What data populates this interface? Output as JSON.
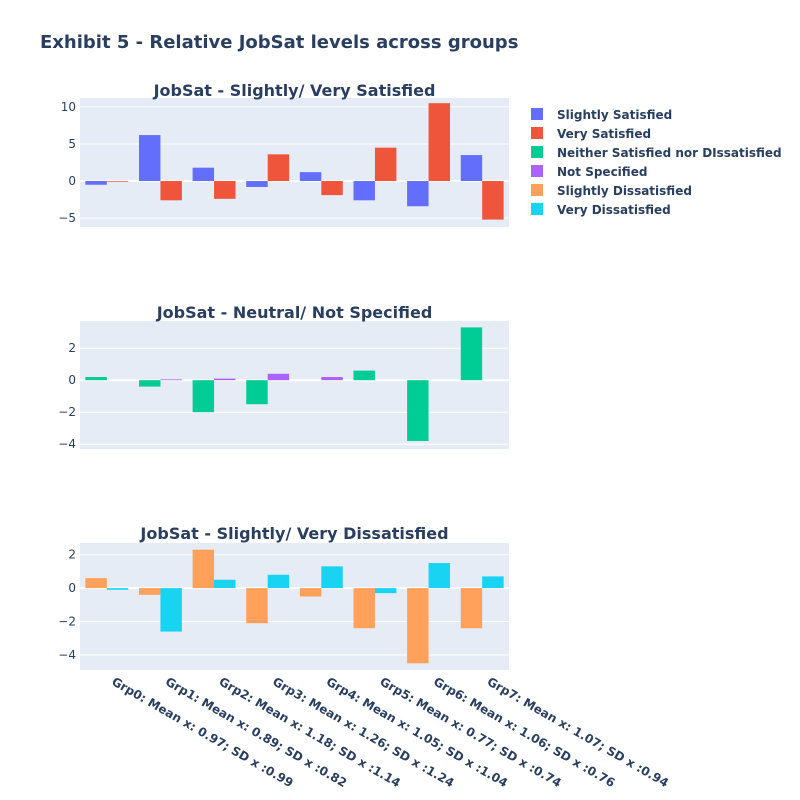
{
  "title": "Exhibit 5 - Relative JobSat levels across groups",
  "chart_data": [
    {
      "type": "bar",
      "title": "JobSat - Slightly/ Very Satisfied",
      "categories": [
        "Grp0: Mean x: 0.97; SD x :0.99",
        "Grp1: Mean x: 0.89; SD x :0.82",
        "Grp2: Mean x: 1.18; SD x :1.14",
        "Grp3: Mean x: 1.26; SD x :1.24",
        "Grp4: Mean x: 1.05; SD x :1.04",
        "Grp5: Mean x: 0.77; SD x :0.74",
        "Grp6: Mean x: 1.06; SD x :0.76",
        "Grp7: Mean x: 1.07; SD x :0.94"
      ],
      "ylim": [
        -6.2,
        11.2
      ],
      "yticks": [
        -5,
        0,
        5,
        10
      ],
      "series": [
        {
          "name": "Slightly Satisfied",
          "color": "#636efa",
          "values": [
            -0.5,
            6.2,
            1.8,
            -0.8,
            1.2,
            -2.6,
            -3.4,
            3.5
          ]
        },
        {
          "name": "Very Satisfied",
          "color": "#ef553b",
          "values": [
            -0.1,
            -2.6,
            -2.4,
            3.6,
            -1.9,
            4.5,
            10.5,
            -5.2
          ]
        }
      ]
    },
    {
      "type": "bar",
      "title": "JobSat - Neutral/ Not Specified",
      "categories": [
        "Grp0: Mean x: 0.97; SD x :0.99",
        "Grp1: Mean x: 0.89; SD x :0.82",
        "Grp2: Mean x: 1.18; SD x :1.14",
        "Grp3: Mean x: 1.26; SD x :1.24",
        "Grp4: Mean x: 1.05; SD x :1.04",
        "Grp5: Mean x: 0.77; SD x :0.74",
        "Grp6: Mean x: 1.06; SD x :0.76",
        "Grp7: Mean x: 1.07; SD x :0.94"
      ],
      "ylim": [
        -4.3,
        3.7
      ],
      "yticks": [
        -4,
        -2,
        0,
        2
      ],
      "series": [
        {
          "name": "Neither Satisfied nor DIssatisfied",
          "color": "#00cc96",
          "values": [
            0.2,
            -0.4,
            -2.0,
            -1.5,
            0.0,
            0.6,
            -3.8,
            3.3
          ]
        },
        {
          "name": "Not Specified",
          "color": "#ab63fa",
          "values": [
            0.0,
            0.05,
            0.1,
            0.4,
            0.2,
            0.0,
            0.0,
            0.0
          ]
        }
      ]
    },
    {
      "type": "bar",
      "title": "JobSat - Slightly/ Very Dissatisfied",
      "categories": [
        "Grp0: Mean x: 0.97; SD x :0.99",
        "Grp1: Mean x: 0.89; SD x :0.82",
        "Grp2: Mean x: 1.18; SD x :1.14",
        "Grp3: Mean x: 1.26; SD x :1.24",
        "Grp4: Mean x: 1.05; SD x :1.04",
        "Grp5: Mean x: 0.77; SD x :0.74",
        "Grp6: Mean x: 1.06; SD x :0.76",
        "Grp7: Mean x: 1.07; SD x :0.94"
      ],
      "ylim": [
        -4.9,
        2.7
      ],
      "yticks": [
        -4,
        -2,
        0,
        2
      ],
      "series": [
        {
          "name": "Slightly Dissatisfied",
          "color": "#ffa15a",
          "values": [
            0.6,
            -0.4,
            2.3,
            -2.1,
            -0.5,
            -2.4,
            -4.5,
            -2.4
          ]
        },
        {
          "name": "Very Dissatisfied",
          "color": "#19d3f3",
          "values": [
            -0.1,
            -2.6,
            0.5,
            0.8,
            1.3,
            -0.3,
            1.5,
            0.7
          ]
        }
      ]
    }
  ],
  "legend": {
    "position": "top-right",
    "items": [
      {
        "name": "Slightly Satisfied",
        "color": "#636efa"
      },
      {
        "name": "Very Satisfied",
        "color": "#ef553b"
      },
      {
        "name": "Neither Satisfied nor DIssatisfied",
        "color": "#00cc96"
      },
      {
        "name": "Not Specified",
        "color": "#ab63fa"
      },
      {
        "name": "Slightly Dissatisfied",
        "color": "#ffa15a"
      },
      {
        "name": "Very Dissatisfied",
        "color": "#19d3f3"
      }
    ]
  }
}
